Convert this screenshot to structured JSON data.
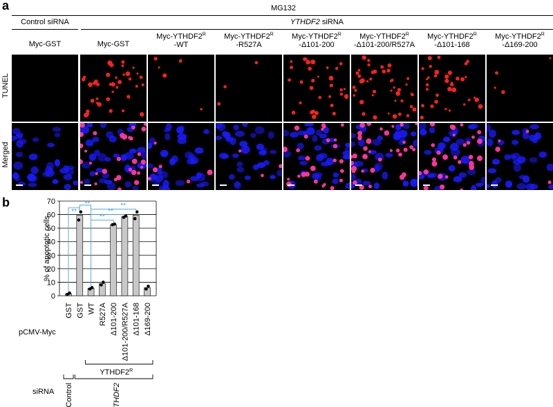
{
  "figure": {
    "panel_a_label": "a",
    "panel_b_label": "b",
    "treatment": "MG132",
    "group_control": "Control siRNA",
    "group_ythdf2": "YTHDF2",
    "group_ythdf2_suffix": "siRNA",
    "columns": [
      {
        "line1": "Myc-GST",
        "line2": "",
        "sup": ""
      },
      {
        "line1": "Myc-GST",
        "line2": "",
        "sup": ""
      },
      {
        "line1": "Myc-YTHDF2",
        "sup": "R",
        "line2": "-WT"
      },
      {
        "line1": "Myc-YTHDF2",
        "sup": "R",
        "line2": "-R527A"
      },
      {
        "line1": "Myc-YTHDF2",
        "sup": "R",
        "line2": "-Δ101-200"
      },
      {
        "line1": "Myc-YTHDF2",
        "sup": "R",
        "line2": "-Δ101-200/R527A"
      },
      {
        "line1": "Myc-YTHDF2",
        "sup": "R",
        "line2": "-Δ101-168"
      },
      {
        "line1": "Myc-YTHDF2",
        "sup": "R",
        "line2": "-Δ169-200"
      }
    ],
    "row_labels": [
      "TUNEL",
      "Merged"
    ],
    "tunel_counts": [
      0,
      38,
      6,
      3,
      32,
      42,
      34,
      4
    ],
    "merged_counts": [
      0,
      30,
      6,
      3,
      26,
      34,
      28,
      4
    ],
    "colors": {
      "tunel": "#ff2020",
      "nuclei": "#1a1aff",
      "merged": "#ff3399",
      "sig": "#4aa3df",
      "bar": "#c8c8c8"
    }
  },
  "chart_data": {
    "type": "bar",
    "ylabel": "% of apoptotic cells",
    "ylim": [
      0,
      70
    ],
    "yticks": [
      0,
      10,
      20,
      30,
      40,
      50,
      60,
      70
    ],
    "categories": [
      "GST",
      "GST",
      "WT",
      "R527A",
      "Δ101-200",
      "Δ101-200/R527A",
      "Δ101-168",
      "Δ169-200"
    ],
    "values": [
      1.5,
      59.5,
      5.5,
      9,
      52.5,
      58.5,
      59.5,
      6
    ],
    "points": [
      [
        1,
        2
      ],
      [
        56,
        62
      ],
      [
        5,
        6
      ],
      [
        8,
        10
      ],
      [
        52.5,
        53
      ],
      [
        58,
        59
      ],
      [
        57,
        62
      ],
      [
        5,
        7
      ]
    ],
    "significance": "**",
    "grid": true,
    "x_row_label": "pCMV-Myc",
    "bracket_ythdf2r_label": "YTHDF2",
    "bracket_ythdf2r_sup": "R",
    "sirna_label": "siRNA",
    "sirna_control": "Control",
    "sirna_ythdf2": "YTHDF2"
  }
}
